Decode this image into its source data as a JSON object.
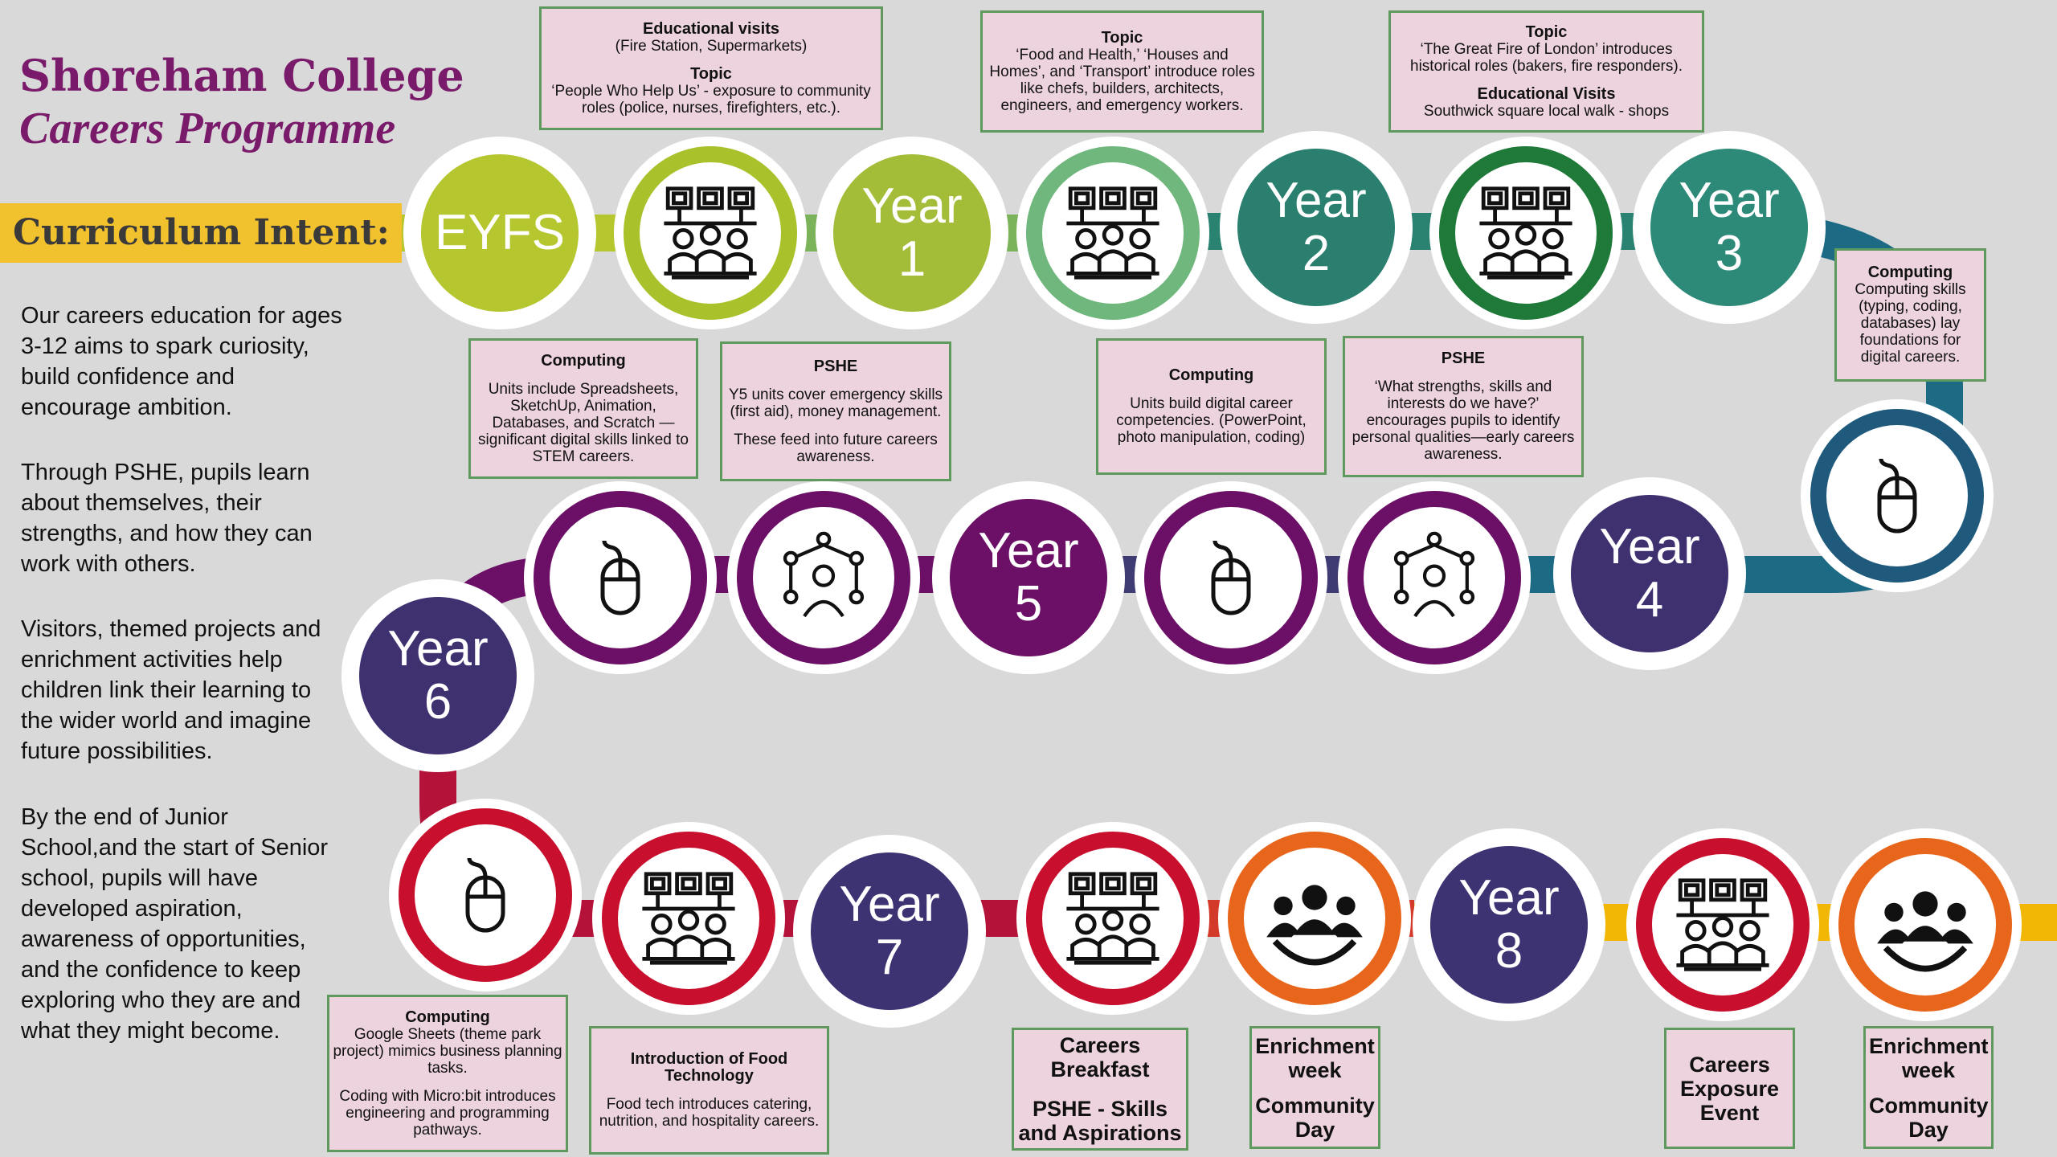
{
  "header": {
    "title": "Shoreham College",
    "subtitle": "Careers Programme",
    "section": "Curriculum Intent:"
  },
  "intro": [
    "Our careers education for ages 3-12 aims to spark curiosity, build confidence and encourage ambition.",
    "Through PSHE, pupils learn about themselves, their strengths, and how they can work with others.",
    "Visitors, themed projects and enrichment activities help children link their learning to the wider world and imagine future possibilities.",
    "By the end of Junior School,and the start of Senior school, pupils will have developed aspiration, awareness of opportunities, and the confidence to keep exploring who they are and what they might become."
  ],
  "stages": {
    "eyfs": "EYFS",
    "y1": {
      "a": "Year",
      "b": "1"
    },
    "y2": {
      "a": "Year",
      "b": "2"
    },
    "y3": {
      "a": "Year",
      "b": "3"
    },
    "y4": {
      "a": "Year",
      "b": "4"
    },
    "y5": {
      "a": "Year",
      "b": "5"
    },
    "y6": {
      "a": "Year",
      "b": "6"
    },
    "y7": {
      "a": "Year",
      "b": "7"
    },
    "y8": {
      "a": "Year",
      "b": "8"
    }
  },
  "colors": {
    "lime": "#b5c62e",
    "teal": "#2a7f6f",
    "darkgreen": "#1f7a3a",
    "purple": "#6c0f66",
    "navy": "#3f3070",
    "red": "#c8102e",
    "orange": "#e8661c",
    "yellow": "#f2b705",
    "box_bg": "#ecd3dd",
    "box_border": "#5e9a5e",
    "title": "#7a1a6b"
  },
  "boxes": {
    "eyfs_top": {
      "h1": "Educational visits",
      "t1": "(Fire Station, Supermarkets)",
      "h2": "Topic",
      "t2": "‘People Who Help Us’ - exposure to community roles (police, nurses, firefighters, etc.)."
    },
    "y1_top": {
      "h1": "Topic",
      "t1": "‘Food and Health,’ ‘Houses and Homes’, and ‘Transport’ introduce roles like chefs, builders, architects, engineers, and emergency workers."
    },
    "y2_top": {
      "h1": "Topic",
      "t1": "‘The Great Fire of London’ introduces historical roles (bakers, fire responders).",
      "h2": "Educational Visits",
      "t2": "Southwick square local walk  - shops"
    },
    "y3_computing": {
      "h1": "Computing",
      "t1": "Computing skills (typing, coding, databases) lay foundations for digital careers."
    },
    "y6_computing": {
      "h1": "Computing",
      "t1": "Units include Spreadsheets, SketchUp, Animation, Databases, and Scratch — significant digital skills linked to STEM careers."
    },
    "y5_pshe": {
      "h1": "PSHE",
      "t1": "Y5 units cover emergency skills (first aid), money management.",
      "t2": "These feed into future careers awareness."
    },
    "y4_computing": {
      "h1": "Computing",
      "t1": "Units build digital career competencies. (PowerPoint, photo manipulation, coding)"
    },
    "y4_pshe": {
      "h1": "PSHE",
      "t1": "‘What strengths, skills and interests do we have?’ encourages pupils to identify personal qualities—early careers awareness."
    },
    "y7_computing": {
      "h1": "Computing",
      "t1": "Google Sheets (theme park project) mimics business planning tasks.",
      "t2": "Coding with Micro:bit introduces engineering and programming pathways."
    },
    "y7_food": {
      "h1": "Introduction of Food Technology",
      "t1": "Food tech introduces catering, nutrition, and hospitality careers."
    },
    "y7_breakfast": {
      "t1": "Careers Breakfast",
      "t2": "PSHE - Skills and Aspirations"
    },
    "y7_enrichment": {
      "t1": "Enrichment week",
      "t2": "Community Day"
    },
    "y8_exposure": {
      "t1": "Careers Exposure Event"
    },
    "y8_enrichment": {
      "t1": "Enrichment week",
      "t2": "Community Day"
    }
  }
}
